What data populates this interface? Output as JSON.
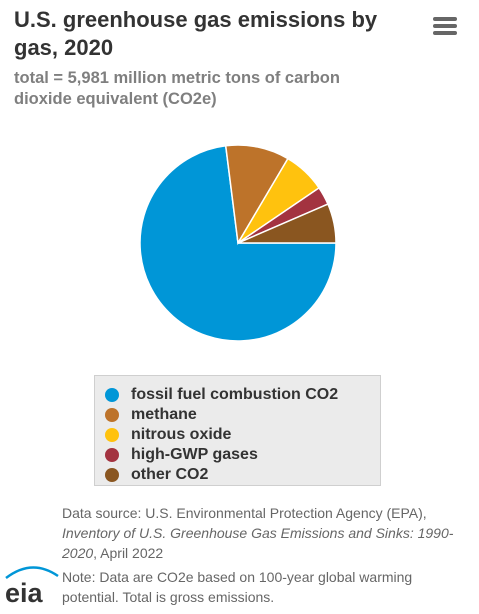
{
  "header": {
    "title": "U.S. greenhouse gas emissions by gas, 2020",
    "subtitle": "total = 5,981 million metric tons of carbon dioxide equivalent (CO2e)",
    "menu_icon": "hamburger-menu-icon"
  },
  "colors": {
    "fossil": "#0096d7",
    "methane": "#bd732a",
    "nitrous": "#ffc20e",
    "hgwp": "#a33340",
    "other": "#8a5620",
    "logo": "#0096d7"
  },
  "chart_data": {
    "type": "pie",
    "title": "U.S. greenhouse gas emissions by gas, 2020",
    "subtitle": "total = 5,981 million metric tons of carbon dioxide equivalent (CO2e)",
    "legend_position": "bottom",
    "slices": [
      {
        "label": "fossil fuel combustion CO2",
        "value": 73.0,
        "color": "#0096d7"
      },
      {
        "label": "methane",
        "value": 10.5,
        "color": "#bd732a"
      },
      {
        "label": "nitrous oxide",
        "value": 7.0,
        "color": "#ffc20e"
      },
      {
        "label": "high-GWP gases",
        "value": 3.0,
        "color": "#a33340"
      },
      {
        "label": "other CO2",
        "value": 6.5,
        "color": "#8a5620"
      }
    ]
  },
  "legend": {
    "items": [
      {
        "label": "fossil fuel combustion CO2",
        "color": "#0096d7"
      },
      {
        "label": "methane",
        "color": "#bd732a"
      },
      {
        "label": "nitrous oxide",
        "color": "#ffc20e"
      },
      {
        "label": "high-GWP gases",
        "color": "#a33340"
      },
      {
        "label": "other CO2",
        "color": "#8a5620"
      }
    ]
  },
  "footer": {
    "source_prefix": "Data source: U.S. Environmental Protection Agency (EPA), ",
    "source_title": "Inventory of U.S. Greenhouse Gas Emissions and Sinks: 1990-2020",
    "source_suffix": ", April 2022",
    "note": "Note: Data are CO2e based on 100-year global warming potential. Total is gross emissions.",
    "logo_text": "eia"
  }
}
